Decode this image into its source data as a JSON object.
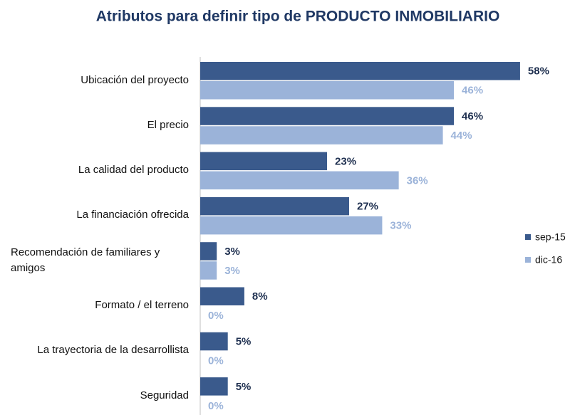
{
  "chart_data": {
    "type": "barh",
    "title": "Atributos para definir tipo de PRODUCTO  INMOBILIARIO",
    "categories": [
      "Ubicación del proyecto",
      "El precio",
      "La calidad del producto",
      "La financiación ofrecida",
      "Recomendación de familiares y amigos",
      "Formato / el terreno",
      "La trayectoria de la desarrollista",
      "Seguridad"
    ],
    "series": [
      {
        "name": "sep-15",
        "color": "#3a5a8c",
        "label_color": "#1f3050",
        "values": [
          58,
          46,
          23,
          27,
          3,
          8,
          5,
          5
        ],
        "value_labels": [
          "58%",
          "46%",
          "23%",
          "27%",
          "3%",
          "8%",
          "5%",
          "5%"
        ]
      },
      {
        "name": "dic-16",
        "color": "#9bb3d9",
        "label_color": "#9bb3d9",
        "values": [
          46,
          44,
          36,
          33,
          3,
          0,
          0,
          0
        ],
        "value_labels": [
          "46%",
          "44%",
          "36%",
          "33%",
          "3%",
          "0%",
          "0%",
          "0%"
        ]
      }
    ],
    "legend": "right"
  }
}
